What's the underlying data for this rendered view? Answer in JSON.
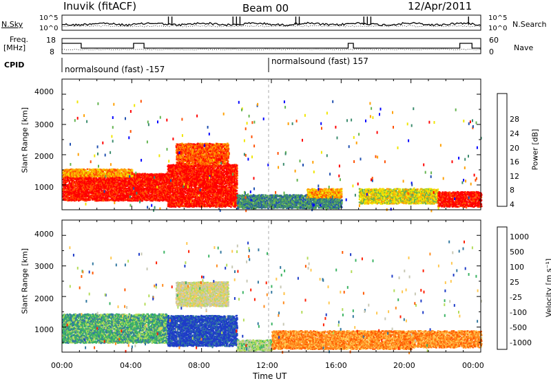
{
  "header": {
    "station": "Inuvik (fitACF)",
    "beam": "Beam 00",
    "date": "12/Apr/2011"
  },
  "noise_panel": {
    "left_label": "N.Sky",
    "right_label": "N.Search",
    "left_ticks": [
      "10^5",
      "10^0"
    ],
    "right_ticks": [
      "10^5",
      "10^0"
    ]
  },
  "freq_panel": {
    "left_label_line1": "Freq.",
    "left_label_line2": "[MHz]",
    "right_label": "Nave",
    "left_ticks": [
      "18",
      "8"
    ],
    "right_ticks": [
      "60",
      "0"
    ]
  },
  "cpid_panel": {
    "label": "CPID",
    "segments": [
      {
        "text": "normalsound (fast) -157"
      },
      {
        "text": "normalsound (fast) 157"
      }
    ]
  },
  "power_panel": {
    "ylabel": "Slant Range [km]",
    "yticks": [
      "4000",
      "3000",
      "2000",
      "1000"
    ],
    "colorbar_label": "Power [dB]",
    "colorbar_ticks": [
      "28",
      "24",
      "20",
      "16",
      "12",
      "8",
      "4"
    ]
  },
  "velocity_panel": {
    "ylabel": "Slant Range [km]",
    "yticks": [
      "4000",
      "3000",
      "2000",
      "1000"
    ],
    "colorbar_label": "Velocity [m s⁻¹]",
    "colorbar_ticks": [
      "1000",
      "500",
      "100",
      "25",
      "-25",
      "-100",
      "-500",
      "-1000"
    ]
  },
  "xaxis": {
    "label": "Time UT",
    "ticks": [
      "00:00",
      "04:00",
      "08:00",
      "12:00",
      "16:00",
      "20:00",
      "00:00"
    ]
  },
  "colors": {
    "power": [
      "#0000ff",
      "#2050b0",
      "#3c8c6e",
      "#64b450",
      "#f0e600",
      "#ffa000",
      "#ff5000",
      "#ff0000"
    ],
    "velocity": [
      "#1e3cc8",
      "#3278a0",
      "#3cb464",
      "#b4dc5a",
      "#c8c8b4",
      "#ffc850",
      "#ff8c1e",
      "#ff5a00",
      "#ff1e00"
    ]
  },
  "chart_data": [
    {
      "type": "line",
      "title": "N.Sky / N.Search",
      "x_range": [
        0,
        24
      ],
      "series": [
        {
          "name": "N.Sky",
          "style": "solid"
        },
        {
          "name": "N.Search",
          "style": "dotted"
        }
      ]
    },
    {
      "type": "line",
      "title": "Freq. / Nave",
      "x_range": [
        0,
        24
      ],
      "series": [
        {
          "name": "Freq. [MHz]",
          "style": "solid",
          "ylim": [
            8,
            18
          ]
        },
        {
          "name": "Nave",
          "style": "dotted",
          "ylim": [
            0,
            60
          ]
        }
      ]
    },
    {
      "type": "heatmap",
      "title": "Power [dB]",
      "xlabel": "Time UT",
      "ylabel": "Slant Range [km]",
      "x_range_hours": [
        0,
        24
      ],
      "ylim": [
        180,
        4500
      ],
      "clim": [
        0,
        30
      ],
      "blobs": [
        {
          "t0": 0,
          "t1": 6,
          "r0": 500,
          "r1": 1400,
          "level": 7
        },
        {
          "t0": 0,
          "t1": 4,
          "r0": 1300,
          "r1": 1550,
          "level": 5
        },
        {
          "t0": 6,
          "t1": 10,
          "r0": 300,
          "r1": 1700,
          "level": 7
        },
        {
          "t0": 6.5,
          "t1": 9.5,
          "r0": 1700,
          "r1": 2400,
          "level": 6
        },
        {
          "t0": 10,
          "t1": 16,
          "r0": 250,
          "r1": 700,
          "level": 2
        },
        {
          "t0": 14,
          "t1": 16,
          "r0": 600,
          "r1": 900,
          "level": 5
        },
        {
          "t0": 17,
          "t1": 21.5,
          "r0": 400,
          "r1": 900,
          "level": 4
        },
        {
          "t0": 21.5,
          "t1": 24,
          "r0": 300,
          "r1": 800,
          "level": 7
        }
      ]
    },
    {
      "type": "heatmap",
      "title": "Velocity [m s⁻¹]",
      "xlabel": "Time UT",
      "ylabel": "Slant Range [km]",
      "x_range_hours": [
        0,
        24
      ],
      "ylim": [
        180,
        4500
      ],
      "clim": [
        -1000,
        1000
      ],
      "blobs": [
        {
          "t0": 0,
          "t1": 6,
          "r0": 500,
          "r1": 1450,
          "level": 2
        },
        {
          "t0": 6,
          "t1": 10,
          "r0": 400,
          "r1": 1400,
          "level": 0
        },
        {
          "t0": 6.5,
          "t1": 9.5,
          "r0": 1700,
          "r1": 2500,
          "level": 4
        },
        {
          "t0": 10,
          "t1": 12,
          "r0": 250,
          "r1": 600,
          "level": 3
        },
        {
          "t0": 12,
          "t1": 20,
          "r0": 300,
          "r1": 900,
          "level": 6
        },
        {
          "t0": 20,
          "t1": 24,
          "r0": 350,
          "r1": 900,
          "level": 6
        }
      ]
    }
  ]
}
